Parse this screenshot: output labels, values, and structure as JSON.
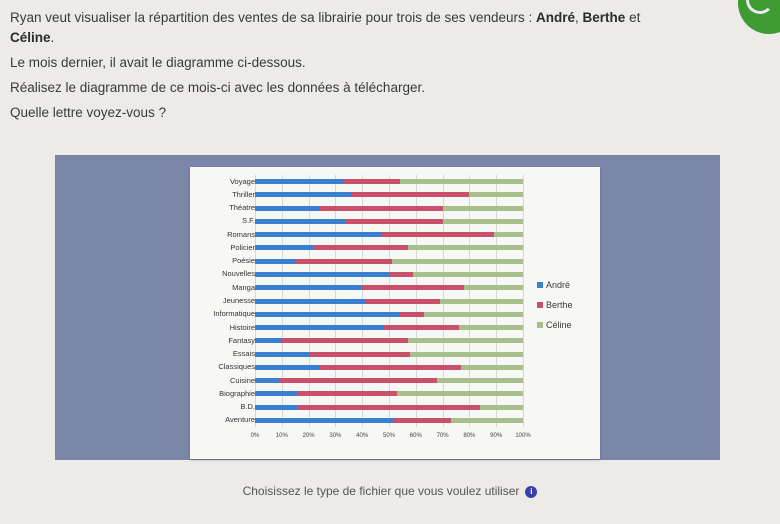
{
  "intro": {
    "line1_prefix": "Ryan veut visualiser la répartition des ventes de sa librairie pour trois de ses vendeurs : ",
    "seller1": "André",
    "sep1": ", ",
    "seller2": "Berthe",
    "sep2": " et ",
    "seller3": "Céline",
    "line1_suffix": ".",
    "line2": "Le mois dernier, il avait le diagramme ci-dessous.",
    "line3": "Réalisez le diagramme de ce mois-ci avec les données à télécharger.",
    "line4": "Quelle lettre voyez-vous ?"
  },
  "footer": {
    "label": "Choisissez le type de fichier que vous voulez utiliser",
    "info_icon": "info-icon"
  },
  "colors": {
    "andre": "#3b7fd0",
    "berthe": "#c8506a",
    "celine": "#a9bf8a"
  },
  "chart_data": {
    "type": "bar",
    "orientation": "horizontal",
    "stacked": "100%",
    "title": "",
    "xlabel": "",
    "ylabel": "",
    "xlim": [
      0,
      100
    ],
    "x_ticks": [
      "0%",
      "10%",
      "20%",
      "30%",
      "40%",
      "50%",
      "60%",
      "70%",
      "80%",
      "90%",
      "100%"
    ],
    "grid": true,
    "legend_position": "right",
    "categories": [
      "Voyage",
      "Thriller",
      "Théatre",
      "S.F.",
      "Romans",
      "Policier",
      "Poésie",
      "Nouvelles",
      "Manga",
      "Jeunesse",
      "Informatique",
      "Histoire",
      "Fantasy",
      "Essais",
      "Classiques",
      "Cuisine",
      "Biographie",
      "B.D.",
      "Aventure"
    ],
    "series": [
      {
        "name": "André",
        "values": [
          33,
          36,
          24,
          34,
          47,
          22,
          15,
          50,
          40,
          41,
          54,
          48,
          10,
          20,
          24,
          9,
          16,
          16,
          52
        ]
      },
      {
        "name": "Berthe",
        "values": [
          21,
          44,
          46,
          36,
          42,
          35,
          36,
          9,
          38,
          28,
          9,
          28,
          47,
          38,
          53,
          59,
          37,
          68,
          21
        ]
      },
      {
        "name": "Céline",
        "values": [
          46,
          20,
          30,
          30,
          11,
          43,
          49,
          41,
          22,
          31,
          37,
          24,
          43,
          42,
          23,
          32,
          47,
          16,
          27
        ]
      }
    ]
  }
}
